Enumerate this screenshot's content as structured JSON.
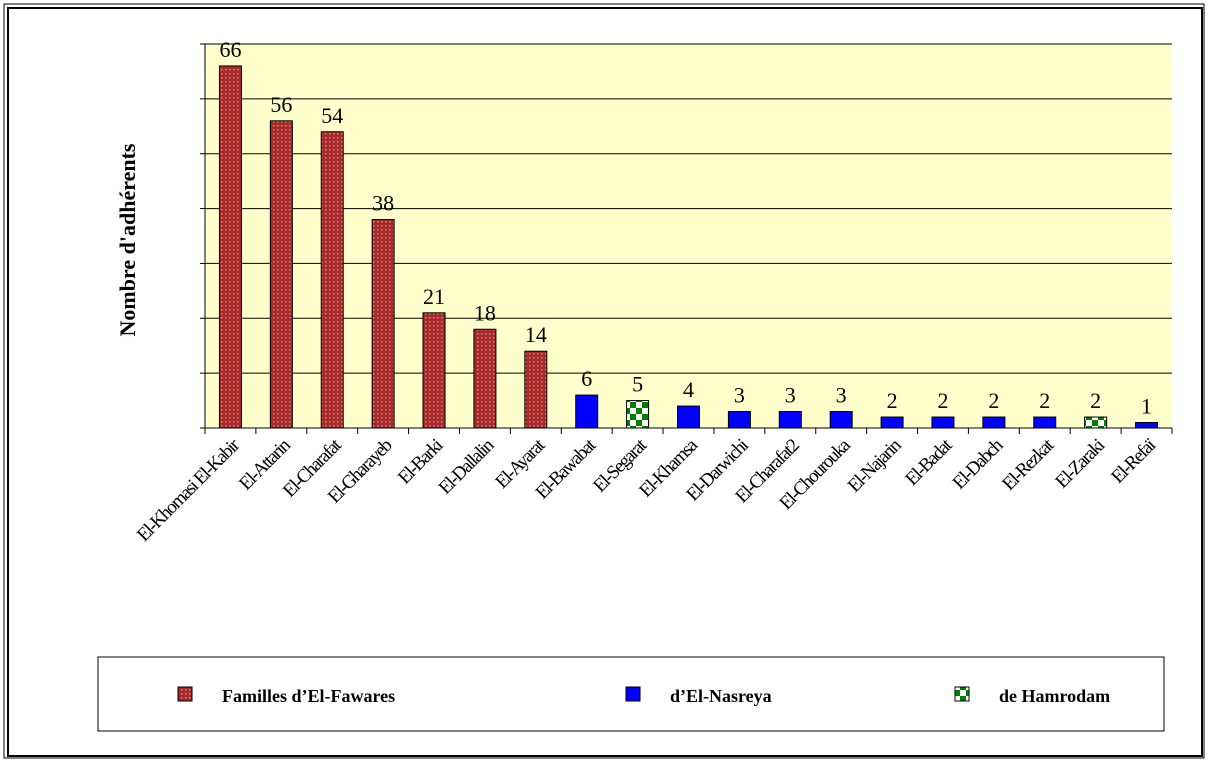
{
  "chart_data": {
    "type": "bar",
    "y_label": "Nombre d'adhérents",
    "categories": [
      "El-Khomasi El-Kabir",
      "El-Attarin",
      "El-Charafat",
      "El-Gharayeb",
      "El-Barki",
      "El-Dallalin",
      "El-Ayarat",
      "El-Bawabat",
      "El-Segarat",
      "El-Khamsa",
      "El-Darwichi",
      "El-Charafat2",
      "El-Chourouka",
      "El-Najarin",
      "El-Badat",
      "El-Dabch",
      "El-Rezkat",
      "El-Zaraki",
      "El-Refaï"
    ],
    "series": [
      {
        "name": "Familles d’El-Fawares",
        "color": "#a52a2a",
        "values": [
          66,
          56,
          54,
          38,
          21,
          18,
          14,
          null,
          null,
          null,
          null,
          null,
          null,
          null,
          null,
          null,
          null,
          null,
          null
        ]
      },
      {
        "name": "d’El-Nasreya",
        "color": "#0000ff",
        "values": [
          null,
          null,
          null,
          null,
          null,
          null,
          null,
          6,
          null,
          4,
          3,
          3,
          3,
          2,
          2,
          2,
          2,
          null,
          1
        ]
      },
      {
        "name": "de Hamrodam",
        "color": "#008000",
        "values": [
          null,
          null,
          null,
          null,
          null,
          null,
          null,
          null,
          5,
          null,
          null,
          null,
          null,
          null,
          null,
          null,
          null,
          2,
          null
        ]
      }
    ],
    "ylim": [
      0,
      70
    ],
    "yticks": [
      0,
      10,
      20,
      30,
      40,
      50,
      60,
      70
    ],
    "grid": true,
    "legend": "bottom"
  }
}
